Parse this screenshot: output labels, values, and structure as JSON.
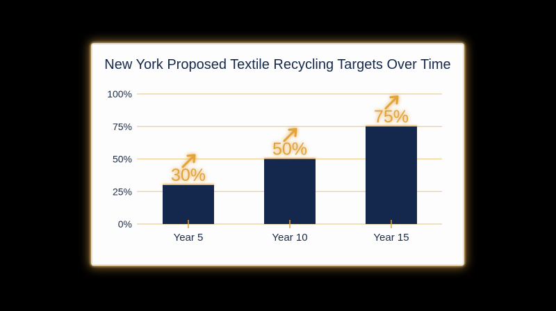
{
  "chart_data": {
    "type": "bar",
    "title": "New York Proposed Textile Recycling Targets Over Time",
    "categories": [
      "Year 5",
      "Year 10",
      "Year 15"
    ],
    "values": [
      30,
      50,
      75
    ],
    "data_labels": [
      "30%",
      "50%",
      "75%"
    ],
    "yticks": [
      "0%",
      "25%",
      "50%",
      "75%",
      "100%"
    ],
    "ylim": [
      0,
      100
    ],
    "grid": true,
    "colors": {
      "bar": "#14284e",
      "grid": "#e9cf94",
      "accent": "#e2a33a",
      "glow": "#f0b450"
    },
    "annotation_icon": "up-right-arrow-icon"
  }
}
